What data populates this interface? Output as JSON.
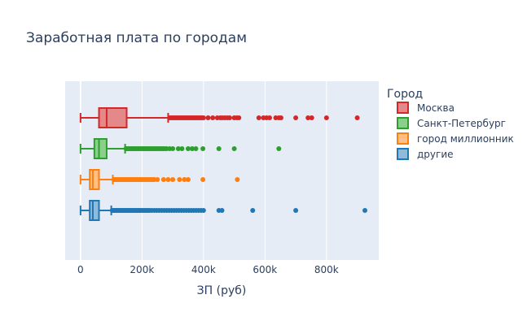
{
  "chart_data": {
    "type": "box",
    "orientation": "horizontal",
    "title": "Заработная плата по городам",
    "xlabel": "ЗП (руб)",
    "ylabel": "",
    "xlim": [
      -50000,
      970000
    ],
    "xticks": [
      0,
      200000,
      400000,
      600000,
      800000
    ],
    "xtick_labels": [
      "0",
      "200k",
      "400k",
      "600k",
      "800k"
    ],
    "grid": true,
    "legend": {
      "title": "Город",
      "placement": "right"
    },
    "series": [
      {
        "name": "Москва",
        "color": "#d62728",
        "fill": "#e3898a",
        "whisker_low": 0,
        "q1": 60000,
        "median": 85000,
        "q3": 150000,
        "whisker_high": 285000,
        "outliers": [
          290000,
          295000,
          300000,
          305000,
          310000,
          315000,
          320000,
          325000,
          330000,
          335000,
          340000,
          345000,
          350000,
          355000,
          360000,
          365000,
          370000,
          375000,
          380000,
          385000,
          390000,
          395000,
          400000,
          415000,
          430000,
          445000,
          455000,
          462000,
          470000,
          478000,
          485000,
          500000,
          508000,
          515000,
          580000,
          595000,
          605000,
          615000,
          635000,
          645000,
          652000,
          700000,
          740000,
          752000,
          800000,
          900000
        ]
      },
      {
        "name": "Санкт-Петербург",
        "color": "#2ca02c",
        "fill": "#8ccf8c",
        "whisker_low": 0,
        "q1": 45000,
        "median": 60000,
        "q3": 85000,
        "whisker_high": 145000,
        "outliers": [
          148000,
          152000,
          156000,
          160000,
          164000,
          168000,
          172000,
          176000,
          180000,
          184000,
          188000,
          192000,
          196000,
          200000,
          204000,
          208000,
          212000,
          216000,
          220000,
          224000,
          228000,
          232000,
          236000,
          240000,
          245000,
          250000,
          255000,
          260000,
          265000,
          270000,
          275000,
          280000,
          290000,
          300000,
          318000,
          330000,
          350000,
          363000,
          375000,
          398000,
          450000,
          500000,
          645000
        ]
      },
      {
        "name": "город миллионник",
        "color": "#ff7f0e",
        "fill": "#ffbf86",
        "whisker_low": 0,
        "q1": 30000,
        "median": 40000,
        "q3": 60000,
        "whisker_high": 105000,
        "outliers": [
          108000,
          112000,
          116000,
          120000,
          124000,
          128000,
          132000,
          136000,
          140000,
          144000,
          148000,
          152000,
          156000,
          160000,
          164000,
          168000,
          172000,
          176000,
          180000,
          184000,
          188000,
          192000,
          196000,
          200000,
          205000,
          210000,
          215000,
          220000,
          225000,
          230000,
          235000,
          240000,
          250000,
          270000,
          285000,
          300000,
          322000,
          338000,
          350000,
          398000,
          510000
        ]
      },
      {
        "name": "другие",
        "color": "#1f77b4",
        "fill": "#8fbad9",
        "whisker_low": 0,
        "q1": 30000,
        "median": 40000,
        "q3": 60000,
        "whisker_high": 100000,
        "outliers": [
          103000,
          107000,
          111000,
          115000,
          119000,
          123000,
          127000,
          131000,
          135000,
          139000,
          143000,
          147000,
          151000,
          155000,
          159000,
          163000,
          167000,
          171000,
          175000,
          179000,
          183000,
          187000,
          191000,
          195000,
          200000,
          205000,
          210000,
          215000,
          220000,
          225000,
          232000,
          240000,
          248000,
          256000,
          264000,
          272000,
          280000,
          288000,
          296000,
          304000,
          312000,
          320000,
          328000,
          336000,
          344000,
          352000,
          360000,
          368000,
          376000,
          384000,
          392000,
          400000,
          450000,
          460000,
          560000,
          700000,
          925000
        ]
      }
    ]
  }
}
